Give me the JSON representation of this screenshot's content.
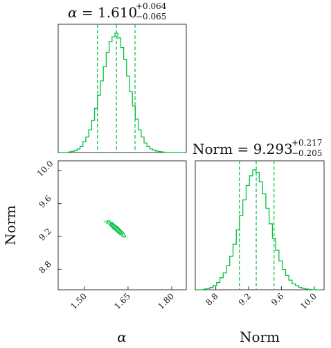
{
  "chart_data": {
    "type": "corner",
    "accent_color": "#00c040",
    "parameters": [
      {
        "name": "α",
        "median": "1.610",
        "plus": "+0.064",
        "minus": "−0.065"
      },
      {
        "name": "Norm",
        "median": "9.293",
        "plus": "+0.217",
        "minus": "−0.205"
      }
    ],
    "panels": [
      {
        "id": "hist-alpha",
        "type": "histogram",
        "x_range": [
          1.41,
          1.85
        ],
        "quantile_lines": [
          1.545,
          1.61,
          1.674
        ],
        "bin_centers": [
          1.42,
          1.43,
          1.44,
          1.45,
          1.46,
          1.47,
          1.48,
          1.49,
          1.5,
          1.51,
          1.52,
          1.53,
          1.54,
          1.55,
          1.56,
          1.57,
          1.58,
          1.59,
          1.6,
          1.61,
          1.62,
          1.63,
          1.64,
          1.65,
          1.66,
          1.67,
          1.68,
          1.69,
          1.7,
          1.71,
          1.72,
          1.73,
          1.74,
          1.75,
          1.76,
          1.77,
          1.78,
          1.79,
          1.8,
          1.81,
          1.82,
          1.83,
          1.84
        ],
        "counts": [
          0,
          0,
          0,
          0.005,
          0.01,
          0.015,
          0.03,
          0.05,
          0.09,
          0.13,
          0.19,
          0.27,
          0.37,
          0.48,
          0.6,
          0.72,
          0.84,
          0.93,
          0.97,
          1.0,
          0.96,
          0.88,
          0.78,
          0.64,
          0.51,
          0.39,
          0.28,
          0.19,
          0.13,
          0.08,
          0.05,
          0.03,
          0.02,
          0.012,
          0.008,
          0.004,
          0,
          0,
          0,
          0,
          0,
          0,
          0
        ]
      },
      {
        "id": "hist-norm",
        "type": "histogram",
        "x_range": [
          8.55,
          10.12
        ],
        "x_ticks": [
          "8.8",
          "9.2",
          "9.6",
          "10.0"
        ],
        "x_tick_values": [
          8.8,
          9.2,
          9.6,
          10.0
        ],
        "quantile_lines": [
          9.088,
          9.293,
          9.51
        ],
        "bin_centers": [
          8.59,
          8.63,
          8.67,
          8.71,
          8.75,
          8.79,
          8.83,
          8.87,
          8.91,
          8.95,
          8.99,
          9.03,
          9.07,
          9.11,
          9.15,
          9.19,
          9.23,
          9.27,
          9.31,
          9.35,
          9.39,
          9.43,
          9.47,
          9.51,
          9.55,
          9.59,
          9.63,
          9.67,
          9.71,
          9.75,
          9.79,
          9.83,
          9.87,
          9.91,
          9.95,
          9.99,
          10.03,
          10.07
        ],
        "counts": [
          0,
          0,
          0.005,
          0.01,
          0.02,
          0.035,
          0.06,
          0.1,
          0.14,
          0.2,
          0.28,
          0.38,
          0.5,
          0.62,
          0.75,
          0.87,
          0.95,
          1.0,
          0.98,
          0.9,
          0.8,
          0.68,
          0.55,
          0.43,
          0.33,
          0.24,
          0.17,
          0.12,
          0.08,
          0.05,
          0.035,
          0.02,
          0.012,
          0.006,
          0.003,
          0,
          0,
          0
        ]
      },
      {
        "id": "scatter-alpha-norm",
        "type": "2d-contour",
        "x_range": [
          1.41,
          1.85
        ],
        "y_range": [
          8.55,
          10.12
        ],
        "x_ticks": [
          "1.50",
          "1.65",
          "1.80"
        ],
        "x_tick_values": [
          1.5,
          1.65,
          1.8
        ],
        "y_ticks": [
          "8.8",
          "9.2",
          "9.6",
          "10.0"
        ],
        "y_tick_values": [
          8.8,
          9.2,
          9.6,
          10.0
        ],
        "center": [
          1.61,
          9.293
        ],
        "contours": [
          {
            "level": "outer",
            "half_length": 0.102,
            "half_width": 0.0105
          },
          {
            "level": "inner",
            "half_length": 0.068,
            "half_width": 0.006
          }
        ],
        "slope": -3.25
      }
    ],
    "xlabel_left": "α",
    "xlabel_right": "Norm",
    "ylabel_bottom": "Norm"
  }
}
